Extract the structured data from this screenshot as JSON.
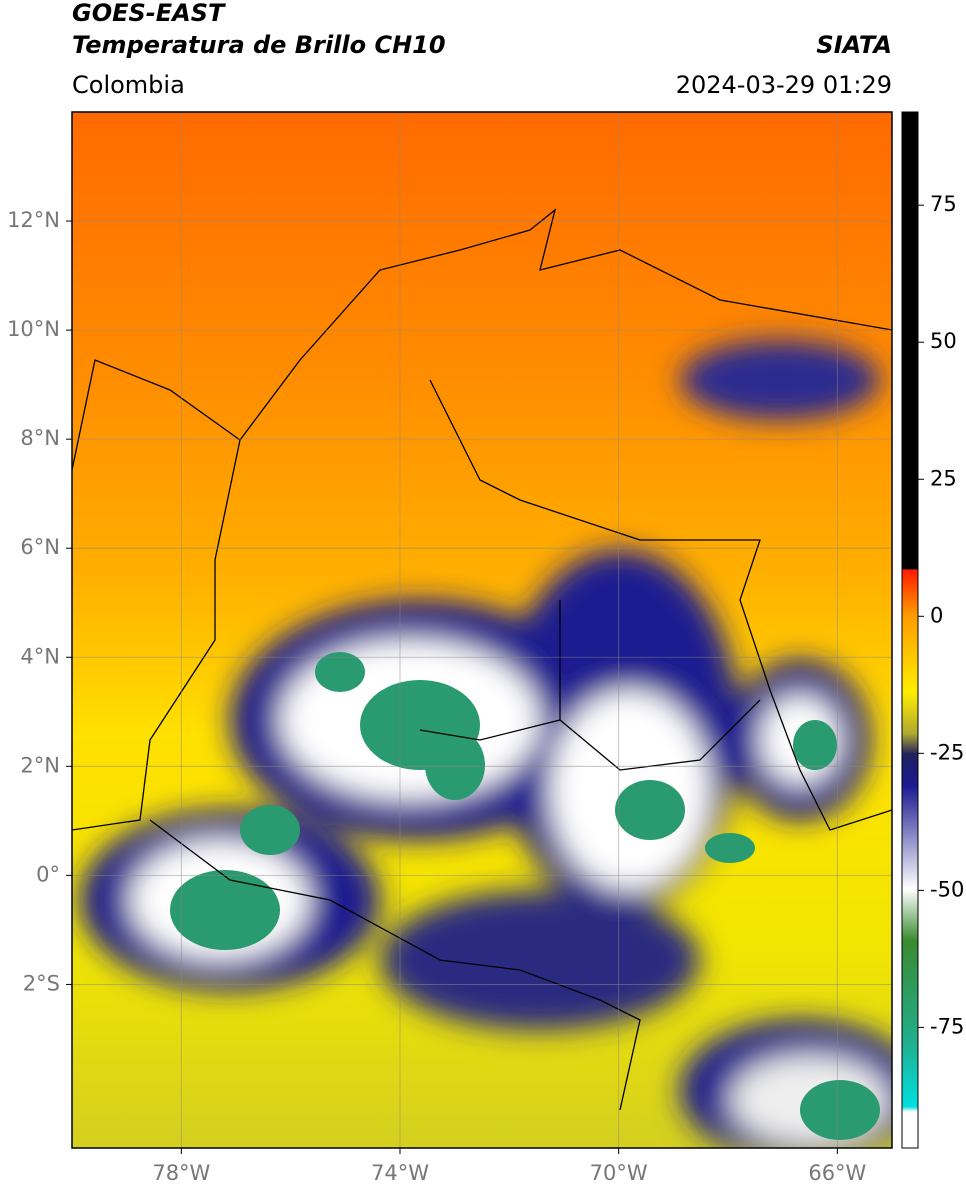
{
  "header": {
    "title": "GOES-EAST",
    "subtitle": "Temperatura de Brillo CH10",
    "region": "Colombia",
    "source": "SIATA",
    "datetime": "2024-03-29 01:29"
  },
  "map": {
    "lon_lim": [
      -80,
      -65
    ],
    "lat_lim": [
      -5,
      14
    ],
    "lon_ticks": [
      {
        "value": -78,
        "label": "78°W"
      },
      {
        "value": -74,
        "label": "74°W"
      },
      {
        "value": -70,
        "label": "70°W"
      },
      {
        "value": -66,
        "label": "66°W"
      }
    ],
    "lat_ticks": [
      {
        "value": 12,
        "label": "12°N"
      },
      {
        "value": 10,
        "label": "10°N"
      },
      {
        "value": 8,
        "label": "8°N"
      },
      {
        "value": 6,
        "label": "6°N"
      },
      {
        "value": 4,
        "label": "4°N"
      },
      {
        "value": 2,
        "label": "2°N"
      },
      {
        "value": 0,
        "label": "0°"
      },
      {
        "value": -2,
        "label": "2°S"
      }
    ],
    "grid": true
  },
  "colorbar": {
    "lim": [
      -97,
      92
    ],
    "ticks": [
      75,
      50,
      25,
      0,
      -25,
      -50,
      -75
    ]
  }
}
